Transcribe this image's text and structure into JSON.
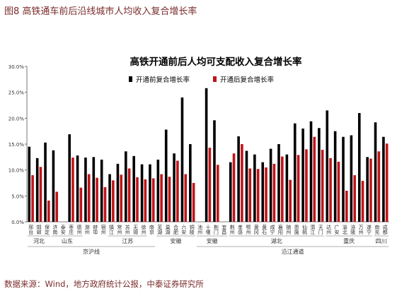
{
  "figure": {
    "title": "图8 高铁通车前后沿线城市人均收入复合增长率",
    "source": "数据来源：Wind，地方政府统计公报，中泰证券研究所"
  },
  "chart_data": {
    "type": "bar",
    "title": "高铁开通前后人均可支配收入复合增长率",
    "xlabel": "",
    "ylabel": "",
    "ylim": [
      0,
      30
    ],
    "y_ticks": [
      "0.0%",
      "5.0%",
      "10.0%",
      "15.0%",
      "20.0%",
      "25.0%",
      "30.0%"
    ],
    "legend_position": "top-right",
    "colors": {
      "before": "#000000",
      "after": "#c0141a"
    },
    "categories": [
      "邢台",
      "邯郸",
      "保定",
      "济南",
      "泰安",
      "枣庄",
      "德州",
      "滁州",
      "蚌埠",
      "宿州",
      "镇江",
      "常州",
      "苏州",
      "无锡",
      "徐州",
      "南京",
      "芜湖",
      "巢湖",
      "合肥",
      "六安",
      "铜陵",
      "池州",
      "十堰",
      "荆门",
      "宜昌",
      "荆州",
      "孝感",
      "鄂州",
      "黄冈",
      "黄石",
      "咸宁",
      "襄阳",
      "随州",
      "恩施",
      "仙桃",
      "潜江",
      "天门",
      "达州",
      "广安",
      "渝北",
      "涪陵",
      "万州",
      "遂宁",
      "南充",
      "成都"
    ],
    "series": [
      {
        "name": "开通前复合增长率",
        "key": "before",
        "values": [
          14.5,
          12.3,
          15.3,
          13.8,
          null,
          16.9,
          12.8,
          12.4,
          12.5,
          12.0,
          9.2,
          11.2,
          13.6,
          12.7,
          11.1,
          11.1,
          12.0,
          17.8,
          13.2,
          24.0,
          15.0,
          null,
          25.8,
          19.6,
          null,
          11.5,
          16.5,
          13.7,
          13.0,
          11.5,
          14.1,
          15.0,
          13.0,
          19.0,
          18.0,
          19.4,
          18.1,
          21.5,
          17.5,
          16.4,
          16.7,
          21.0,
          12.5,
          19.2,
          16.4
        ]
      },
      {
        "name": "开通后复合增长率",
        "key": "after",
        "values": [
          9.0,
          10.6,
          4.1,
          5.8,
          null,
          12.4,
          6.6,
          9.2,
          8.5,
          6.7,
          8.0,
          9.1,
          10.3,
          8.6,
          8.2,
          8.4,
          9.2,
          8.7,
          11.8,
          9.2,
          7.5,
          null,
          14.3,
          11.0,
          null,
          13.2,
          15.0,
          10.3,
          10.2,
          10.5,
          11.2,
          12.6,
          8.1,
          12.9,
          14.0,
          16.4,
          13.9,
          12.3,
          11.6,
          6.0,
          9.0,
          7.9,
          12.2,
          13.6,
          15.1
        ]
      }
    ],
    "groups": [
      {
        "label": "河北",
        "from": 0,
        "to": 2
      },
      {
        "label": "山东",
        "from": 3,
        "to": 6
      },
      {
        "label": "江苏",
        "from": 10,
        "to": 14
      },
      {
        "label": "京沪线",
        "from": 0,
        "to": 15
      },
      {
        "label": "安徽",
        "from": 16,
        "to": 20
      },
      {
        "label": "安徽",
        "from": 21,
        "to": 24
      },
      {
        "label": "湖北",
        "from": 25,
        "to": 36
      },
      {
        "label": "重庆",
        "from": 37,
        "to": 42
      },
      {
        "label": "四川",
        "from": 43,
        "to": 44
      },
      {
        "label": "沿江通道",
        "from": 21,
        "to": 44
      }
    ]
  }
}
